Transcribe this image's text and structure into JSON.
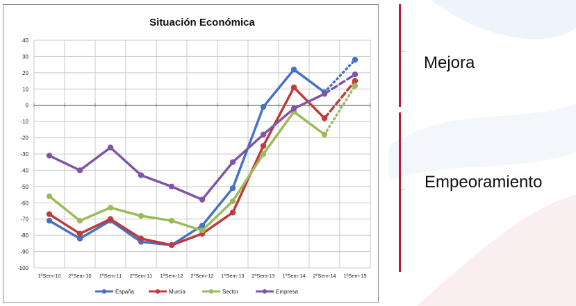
{
  "colors": {
    "espana": "#4472c4",
    "murcia": "#c0393b",
    "sector": "#9bbb59",
    "empresa": "#7f55a5",
    "divider": "#b81b35",
    "background_swoosh": "#e8f1fa"
  },
  "side_labels": {
    "improve": "Mejora",
    "worsen": "Empeoramiento"
  },
  "chart_data": {
    "type": "line",
    "title": "Situación Económica",
    "xlabel": "",
    "ylabel": "",
    "ylim": [
      -100,
      40
    ],
    "yticks": [
      40,
      30,
      20,
      10,
      0,
      -10,
      -20,
      -30,
      -40,
      -50,
      -60,
      -70,
      -80,
      -90,
      -100
    ],
    "grid": true,
    "legend_position": "bottom",
    "categories": [
      "1ªSem-10",
      "2ºSem-10",
      "1ºSem-11",
      "2ºSem-11",
      "1ºSem-12",
      "2ºSem-12",
      "1ºSem-13",
      "2ºSem-13",
      "1ºSem-14",
      "2ºSem-14",
      "1ºSem-15"
    ],
    "series": [
      {
        "name": "España",
        "color_key": "espana",
        "values": [
          -71,
          -82,
          -71,
          -84,
          -86,
          -74,
          -51,
          -1,
          22,
          8,
          28
        ],
        "forecast_from_index": 9,
        "forecast_style": "dotted"
      },
      {
        "name": "Murcia",
        "color_key": "murcia",
        "values": [
          -67,
          -79,
          -70,
          -82,
          -86,
          -79,
          -66,
          -25,
          11,
          -8,
          15
        ],
        "forecast_from_index": 9,
        "forecast_style": "dashed"
      },
      {
        "name": "Sector",
        "color_key": "sector",
        "values": [
          -56,
          -71,
          -63,
          -68,
          -71,
          -77,
          -59,
          -30,
          -4,
          -18,
          12
        ],
        "forecast_from_index": 9,
        "forecast_style": "dotted"
      },
      {
        "name": "Empresa",
        "color_key": "empresa",
        "values": [
          -31,
          -40,
          -26,
          -43,
          -50,
          -58,
          -35,
          -18,
          -2,
          7,
          19
        ],
        "forecast_from_index": 9,
        "forecast_style": "dashed"
      }
    ]
  }
}
